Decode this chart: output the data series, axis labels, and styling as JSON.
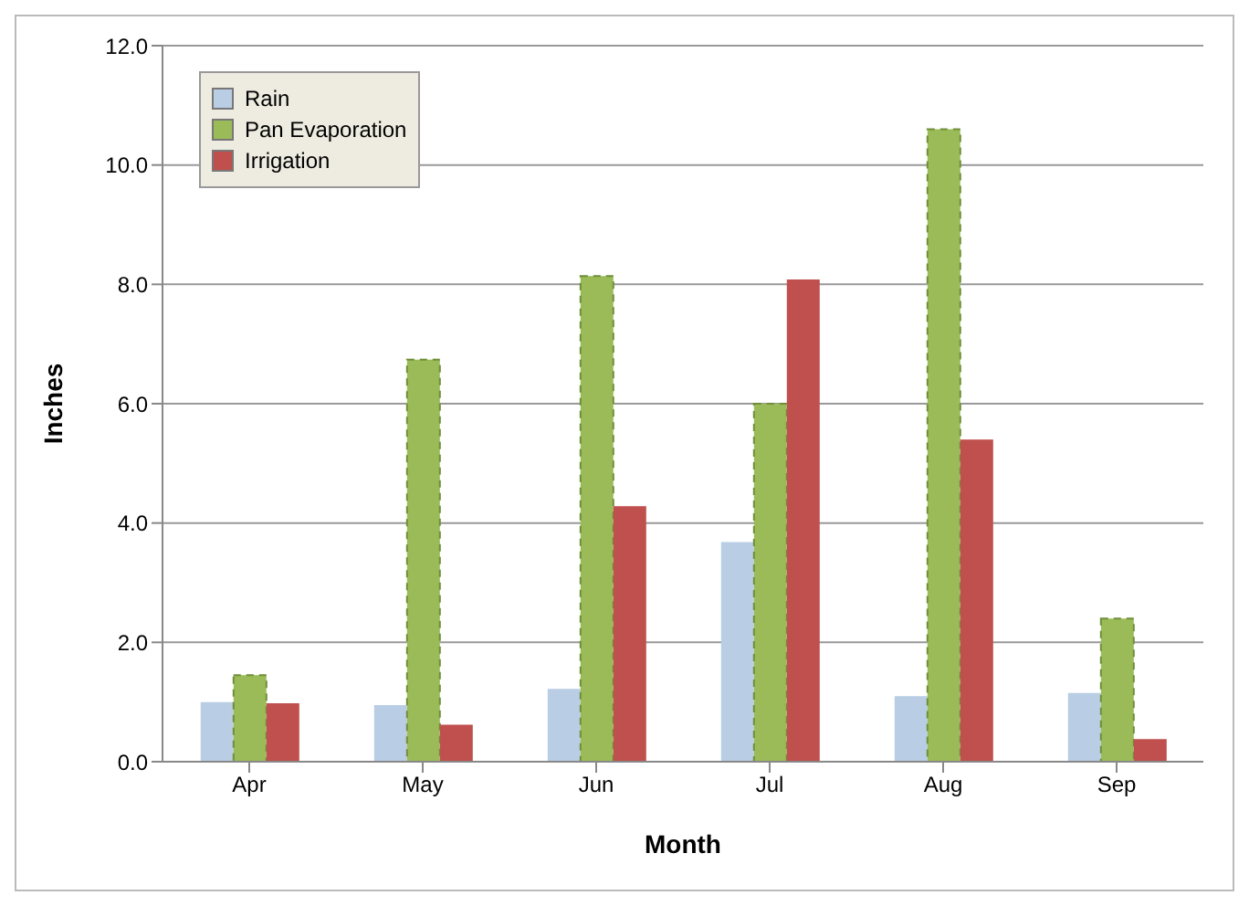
{
  "chart_data": {
    "type": "bar",
    "xlabel": "Month",
    "ylabel": "Inches",
    "categories": [
      "Apr",
      "May",
      "Jun",
      "Jul",
      "Aug",
      "Sep"
    ],
    "series": [
      {
        "name": "Rain",
        "color": "#b9cde5",
        "values": [
          1.0,
          0.95,
          1.22,
          3.68,
          1.1,
          1.15
        ]
      },
      {
        "name": "Pan Evaporation",
        "color": "#9bbb59",
        "values": [
          1.45,
          6.74,
          8.14,
          6.0,
          10.6,
          2.4
        ]
      },
      {
        "name": "Irrigation",
        "color": "#c0504d",
        "values": [
          0.98,
          0.62,
          4.28,
          8.08,
          5.4,
          0.38
        ]
      }
    ],
    "ylim": [
      0,
      12
    ],
    "yticks": [
      {
        "value": 0,
        "label": "0.0"
      },
      {
        "value": 2,
        "label": "2.0"
      },
      {
        "value": 4,
        "label": "4.0"
      },
      {
        "value": 6,
        "label": "6.0"
      },
      {
        "value": 8,
        "label": "8.0"
      },
      {
        "value": 10,
        "label": "10.0"
      },
      {
        "value": 12,
        "label": "12.0"
      }
    ],
    "grid": "y",
    "legend": "top left"
  }
}
